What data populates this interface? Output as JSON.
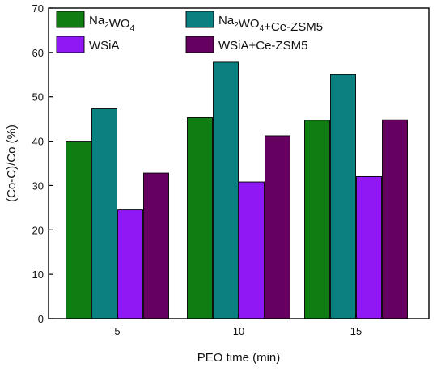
{
  "chart_data": {
    "type": "bar",
    "categories": [
      "5",
      "10",
      "15"
    ],
    "series": [
      {
        "name": "Na2WO4",
        "label_parts": [
          {
            "text": "Na",
            "sub": false
          },
          {
            "text": "2",
            "sub": true
          },
          {
            "text": "WO",
            "sub": false
          },
          {
            "text": "4",
            "sub": true
          }
        ],
        "values": [
          40,
          45.3,
          44.7
        ],
        "color": "#0f7d12"
      },
      {
        "name": "Na2WO4+Ce-ZSM5",
        "label_parts": [
          {
            "text": "Na",
            "sub": false
          },
          {
            "text": "2",
            "sub": true
          },
          {
            "text": "WO",
            "sub": false
          },
          {
            "text": "4",
            "sub": true
          },
          {
            "text": "+Ce-ZSM5",
            "sub": false
          }
        ],
        "values": [
          47.3,
          57.8,
          55
        ],
        "color": "#0a8080"
      },
      {
        "name": "WSiA",
        "label_parts": [
          {
            "text": "WSiA",
            "sub": false
          }
        ],
        "values": [
          24.5,
          30.8,
          32
        ],
        "color": "#8f18f5"
      },
      {
        "name": "WSiA+Ce-ZSM5",
        "label_parts": [
          {
            "text": "WSiA+Ce-ZSM5",
            "sub": false
          }
        ],
        "values": [
          32.8,
          41.2,
          44.8
        ],
        "color": "#650060"
      }
    ],
    "xlabel": "PEO time (min)",
    "ylabel": "(Co-C)/Co (%)",
    "ylim": [
      0,
      70
    ],
    "yticks": [
      0,
      10,
      20,
      30,
      40,
      50,
      60,
      70
    ],
    "grid": false,
    "legend_position": "top-left"
  }
}
